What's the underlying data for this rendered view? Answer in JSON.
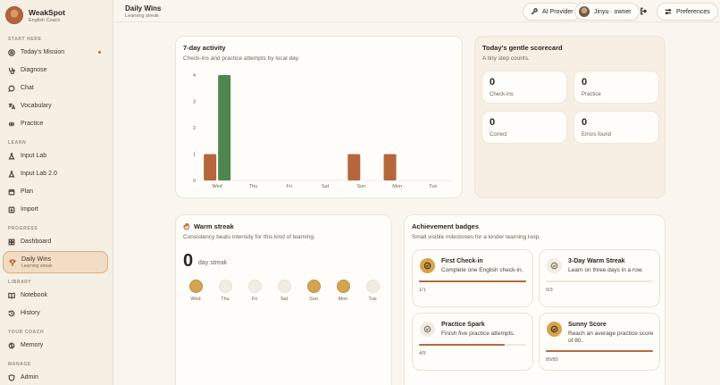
{
  "app": {
    "name": "WeakSpot",
    "subtitle": "English Coach"
  },
  "sidebar": {
    "sections": [
      {
        "label": "START HERE"
      },
      {
        "label": "LEARN"
      },
      {
        "label": "PROGRESS"
      },
      {
        "label": "LIBRARY"
      },
      {
        "label": "YOUR COACH"
      },
      {
        "label": "MANAGE"
      }
    ],
    "items": [
      {
        "label": "Today's Mission",
        "icon": "target-icon"
      },
      {
        "label": "Diagnose",
        "icon": "stethoscope-icon"
      },
      {
        "label": "Chat",
        "icon": "chat-icon"
      },
      {
        "label": "Vocabulary",
        "icon": "translate-icon"
      },
      {
        "label": "Practice",
        "icon": "dumbbell-icon"
      },
      {
        "label": "Input Lab",
        "icon": "flask-icon"
      },
      {
        "label": "Input Lab 2.0",
        "icon": "flask-icon"
      },
      {
        "label": "Plan",
        "icon": "calendar-icon"
      },
      {
        "label": "Import",
        "icon": "import-icon"
      },
      {
        "label": "Dashboard",
        "icon": "grid-icon"
      },
      {
        "label": "Daily Wins",
        "sub": "Learning streak",
        "icon": "trophy-icon"
      },
      {
        "label": "Notebook",
        "icon": "book-icon"
      },
      {
        "label": "History",
        "icon": "history-icon"
      },
      {
        "label": "Memory",
        "icon": "brain-icon"
      },
      {
        "label": "Admin",
        "icon": "shield-icon"
      }
    ]
  },
  "header": {
    "title": "Daily Wins",
    "subtitle": "Learning streak",
    "ai_provider": "AI Provider",
    "user": "Jinyu · owner",
    "preferences": "Preferences"
  },
  "activity": {
    "title": "7-day activity",
    "subtitle": "Check-ins and practice attempts by local day."
  },
  "chart_data": {
    "type": "bar",
    "categories": [
      "Wed",
      "Thu",
      "Fri",
      "Sat",
      "Sun",
      "Mon",
      "Tue"
    ],
    "series": [
      {
        "values": [
          1,
          0,
          0,
          0,
          1,
          1,
          0
        ],
        "color": "#b5663a"
      },
      {
        "values": [
          4,
          0,
          0,
          0,
          0,
          0,
          0
        ],
        "color": "#4f8650"
      }
    ],
    "ylim": [
      0,
      4
    ],
    "yticks": [
      "0",
      "1",
      "2",
      "3",
      "4"
    ],
    "grid": false
  },
  "scorecard": {
    "title": "Today's gentle scorecard",
    "subtitle": "A tiny step counts.",
    "items": [
      {
        "value": "0",
        "label": "Check-ins"
      },
      {
        "value": "0",
        "label": "Practice"
      },
      {
        "value": "0",
        "label": "Correct"
      },
      {
        "value": "0",
        "label": "Errors found"
      }
    ]
  },
  "streak": {
    "title": "Warm streak",
    "subtitle": "Consistency beats intensity for this kind of learning.",
    "count": "0",
    "unit": "day streak",
    "days": [
      {
        "label": "Wed",
        "active": true
      },
      {
        "label": "Thu",
        "active": false
      },
      {
        "label": "Fri",
        "active": false
      },
      {
        "label": "Sat",
        "active": false
      },
      {
        "label": "Sun",
        "active": true
      },
      {
        "label": "Mon",
        "active": true
      },
      {
        "label": "Tue",
        "active": false
      }
    ]
  },
  "badges": {
    "title": "Achievement badges",
    "subtitle": "Small visible milestones for a kinder learning loop.",
    "items": [
      {
        "title": "First Check-in",
        "desc": "Complete one English check-in.",
        "count": "1/1",
        "progress": 1.0,
        "earned": true
      },
      {
        "title": "3-Day Warm Streak",
        "desc": "Learn on three days in a row.",
        "count": "0/3",
        "progress": 0.0,
        "earned": false
      },
      {
        "title": "Practice Spark",
        "desc": "Finish five practice attempts.",
        "count": "4/5",
        "progress": 0.8,
        "earned": false
      },
      {
        "title": "Sunny Score",
        "desc": "Reach an average practice score of 80.",
        "count": "80/80",
        "progress": 1.0,
        "earned": true
      }
    ]
  }
}
